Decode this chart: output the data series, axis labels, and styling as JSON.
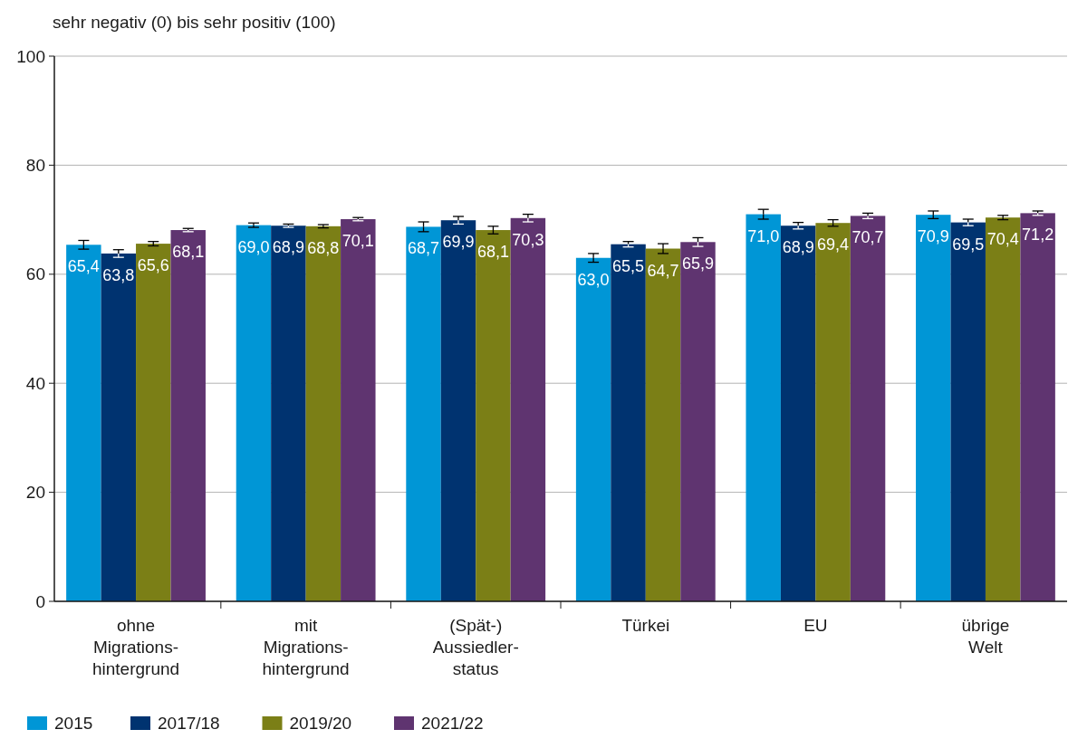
{
  "chart_data": {
    "type": "bar",
    "ylabel": "sehr negativ (0) bis sehr positiv (100)",
    "categories": [
      "ohne\nMigrations-\nhintergrund",
      "mit\nMigrations-\nhintergrund",
      "(Spät-)\nAussiedler-\nstatus",
      "Türkei",
      "EU",
      "übrige\nWelt"
    ],
    "series": [
      {
        "name": "2015",
        "color": "#0096d6",
        "values": [
          65.4,
          69.0,
          68.7,
          63.0,
          71.0,
          70.9
        ],
        "value_labels": [
          "65,4",
          "69,0",
          "68,7",
          "63,0",
          "71,0",
          "70,9"
        ],
        "errors": [
          0.8,
          0.4,
          0.9,
          0.8,
          0.9,
          0.7
        ]
      },
      {
        "name": "2017/18",
        "color": "#003370",
        "values": [
          63.8,
          68.9,
          69.9,
          65.5,
          68.9,
          69.5
        ],
        "value_labels": [
          "63,8",
          "68,9",
          "69,9",
          "65,5",
          "68,9",
          "69,5"
        ],
        "errors": [
          0.7,
          0.3,
          0.7,
          0.5,
          0.6,
          0.6
        ]
      },
      {
        "name": "2019/20",
        "color": "#7b7f16",
        "values": [
          65.6,
          68.8,
          68.1,
          64.7,
          69.4,
          70.4
        ],
        "value_labels": [
          "65,6",
          "68,8",
          "68,1",
          "64,7",
          "69,4",
          "70,4"
        ],
        "errors": [
          0.4,
          0.3,
          0.7,
          0.9,
          0.6,
          0.4
        ]
      },
      {
        "name": "2021/22",
        "color": "#5f3470",
        "values": [
          68.1,
          70.1,
          70.3,
          65.9,
          70.7,
          71.2
        ],
        "value_labels": [
          "68,1",
          "70,1",
          "70,3",
          "65,9",
          "70,7",
          "71,2"
        ],
        "errors": [
          0.3,
          0.3,
          0.7,
          0.8,
          0.5,
          0.4
        ]
      }
    ],
    "ylim": [
      0,
      100
    ],
    "yticks": [
      0,
      20,
      40,
      60,
      80,
      100
    ],
    "grid": "y",
    "legend": "bottom left"
  }
}
